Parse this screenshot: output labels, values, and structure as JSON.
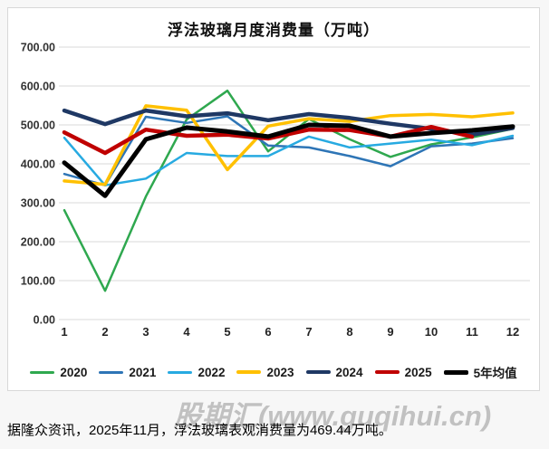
{
  "page": {
    "caption": "据隆众资讯，2025年11月，浮法玻璃表观消费量为469.44万吨。",
    "watermark": "股期汇(www.guqihui.cn)"
  },
  "chart_data": {
    "type": "line",
    "title": "浮法玻璃月度消费量（万吨）",
    "xlabel": "",
    "ylabel": "",
    "x_ticks": [
      "1",
      "2",
      "3",
      "4",
      "5",
      "6",
      "7",
      "8",
      "9",
      "10",
      "11",
      "12"
    ],
    "ylim": [
      0,
      700
    ],
    "ytick_step": 100,
    "ytick_labels": [
      "0.00",
      "100.00",
      "200.00",
      "300.00",
      "400.00",
      "500.00",
      "600.00",
      "700.00"
    ],
    "grid": "horizontal",
    "grid_color": "#d9d9d9",
    "legend_position": "bottom",
    "series": [
      {
        "name": "2020",
        "color": "#2fa84f",
        "width": 2.5,
        "values": [
          281,
          74,
          316,
          514,
          588,
          432,
          515,
          463,
          418,
          450,
          468,
          490
        ]
      },
      {
        "name": "2021",
        "color": "#2e75b6",
        "width": 2.5,
        "values": [
          374,
          345,
          521,
          505,
          522,
          447,
          442,
          420,
          394,
          445,
          452,
          466
        ]
      },
      {
        "name": "2022",
        "color": "#27aae1",
        "width": 2.5,
        "values": [
          467,
          345,
          362,
          428,
          420,
          420,
          470,
          442,
          452,
          462,
          448,
          472
        ]
      },
      {
        "name": "2023",
        "color": "#ffc000",
        "width": 3.5,
        "values": [
          356,
          347,
          549,
          538,
          385,
          497,
          516,
          509,
          524,
          527,
          521,
          531
        ]
      },
      {
        "name": "2024",
        "color": "#1f3864",
        "width": 4.5,
        "values": [
          537,
          502,
          537,
          522,
          530,
          512,
          528,
          518,
          503,
          490,
          475,
          492
        ]
      },
      {
        "name": "2025",
        "color": "#c00000",
        "width": 4.5,
        "values": [
          481,
          428,
          488,
          472,
          475,
          465,
          488,
          487,
          470,
          495,
          469.44
        ]
      },
      {
        "name": "5年均值",
        "color": "#000000",
        "width": 5,
        "values": [
          403,
          318,
          463,
          493,
          483,
          470,
          500,
          498,
          470,
          479,
          486,
          496
        ]
      }
    ]
  }
}
